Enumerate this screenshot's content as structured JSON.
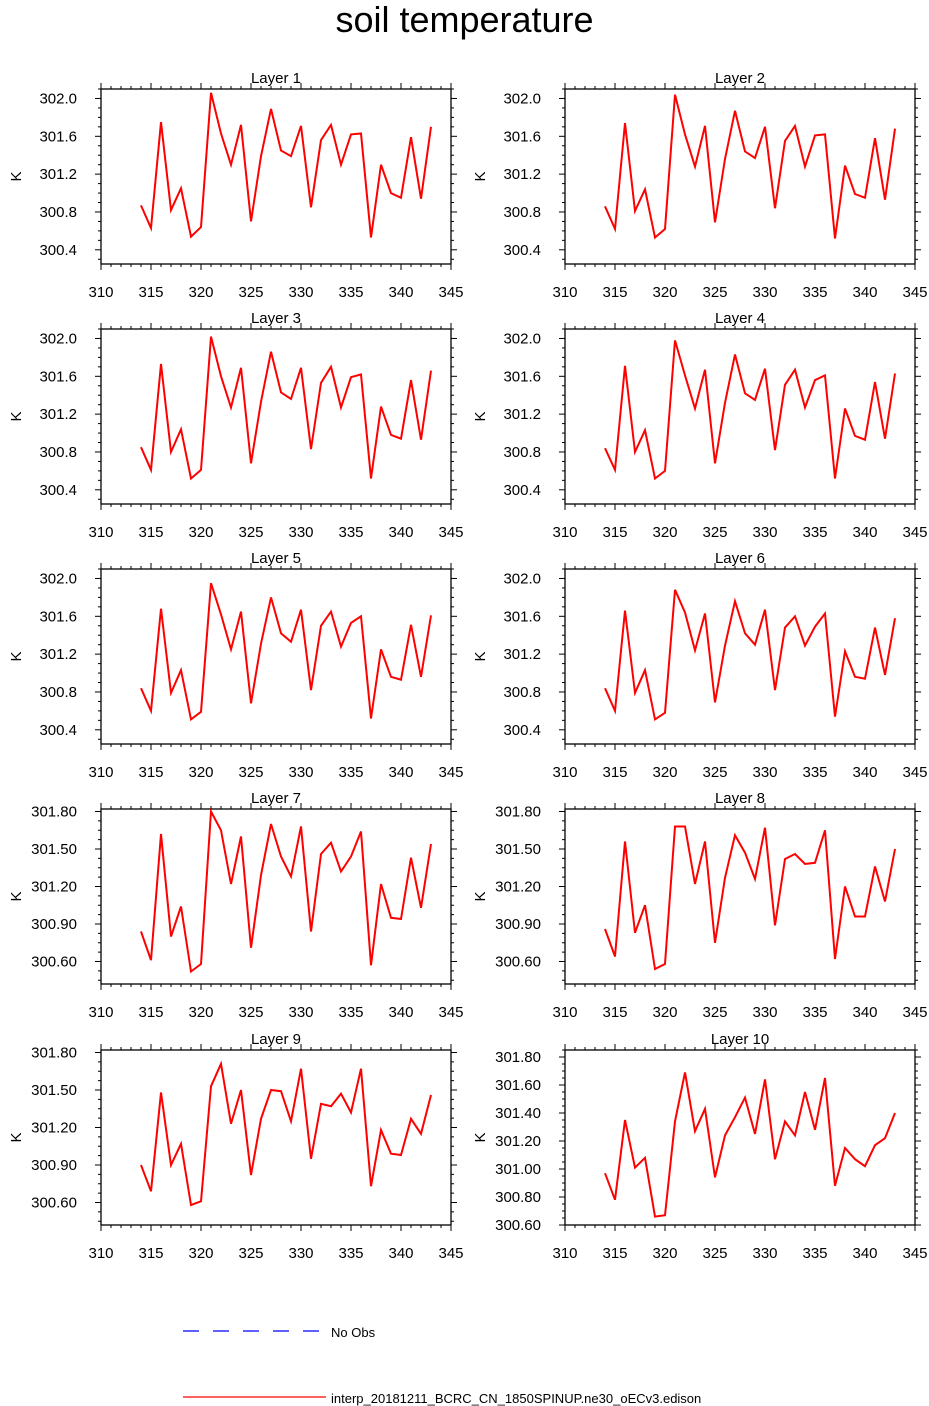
{
  "title": "soil temperature",
  "colors": {
    "model": "#ff0000",
    "obs": "#0000ff",
    "axis": "#000000",
    "background": "#ffffff"
  },
  "legend": {
    "obs_label": "No Obs",
    "model_label": "interp_20181211_BCRC_CN_1850SPINUP.ne30_oECv3.edison",
    "placement": "bottom"
  },
  "chart_data": [
    {
      "type": "line",
      "title": "Layer 1",
      "ylabel": "K",
      "xlim": [
        310,
        345
      ],
      "ylim": [
        300.25,
        302.1
      ],
      "xticks": [
        "310",
        "315",
        "320",
        "325",
        "330",
        "335",
        "340",
        "345"
      ],
      "yticks": [
        "300.4",
        "300.8",
        "301.2",
        "301.6",
        "302.0"
      ],
      "ytick_values": [
        300.4,
        300.8,
        301.2,
        301.6,
        302.0
      ],
      "x": [
        314,
        315,
        316,
        317,
        318,
        319,
        320,
        321,
        322,
        323,
        324,
        325,
        326,
        327,
        328,
        329,
        330,
        331,
        332,
        333,
        334,
        335,
        336,
        337,
        338,
        339,
        340,
        341,
        342,
        343
      ],
      "series": [
        {
          "name": "interp_20181211_BCRC_CN_1850SPINUP.ne30_oECv3.edison",
          "values": [
            300.87,
            300.63,
            301.75,
            300.82,
            301.05,
            300.54,
            300.64,
            302.06,
            301.63,
            301.3,
            301.72,
            300.7,
            301.39,
            301.89,
            301.45,
            301.39,
            301.71,
            300.85,
            301.56,
            301.72,
            301.3,
            301.62,
            301.63,
            300.53,
            301.3,
            301.0,
            300.95,
            301.59,
            300.94,
            301.7
          ]
        }
      ]
    },
    {
      "type": "line",
      "title": "Layer 2",
      "ylabel": "K",
      "xlim": [
        310,
        345
      ],
      "ylim": [
        300.25,
        302.1
      ],
      "xticks": [
        "310",
        "315",
        "320",
        "325",
        "330",
        "335",
        "340",
        "345"
      ],
      "yticks": [
        "300.4",
        "300.8",
        "301.2",
        "301.6",
        "302.0"
      ],
      "ytick_values": [
        300.4,
        300.8,
        301.2,
        301.6,
        302.0
      ],
      "x": [
        314,
        315,
        316,
        317,
        318,
        319,
        320,
        321,
        322,
        323,
        324,
        325,
        326,
        327,
        328,
        329,
        330,
        331,
        332,
        333,
        334,
        335,
        336,
        337,
        338,
        339,
        340,
        341,
        342,
        343
      ],
      "series": [
        {
          "name": "interp_20181211_BCRC_CN_1850SPINUP.ne30_oECv3.edison",
          "values": [
            300.86,
            300.62,
            301.74,
            300.81,
            301.04,
            300.53,
            300.62,
            302.04,
            301.62,
            301.28,
            301.71,
            300.69,
            301.36,
            301.87,
            301.44,
            301.37,
            301.7,
            300.84,
            301.55,
            301.71,
            301.28,
            301.61,
            301.62,
            300.52,
            301.29,
            300.99,
            300.95,
            301.58,
            300.93,
            301.68
          ]
        }
      ]
    },
    {
      "type": "line",
      "title": "Layer 3",
      "ylabel": "K",
      "xlim": [
        310,
        345
      ],
      "ylim": [
        300.25,
        302.1
      ],
      "xticks": [
        "310",
        "315",
        "320",
        "325",
        "330",
        "335",
        "340",
        "345"
      ],
      "yticks": [
        "300.4",
        "300.8",
        "301.2",
        "301.6",
        "302.0"
      ],
      "ytick_values": [
        300.4,
        300.8,
        301.2,
        301.6,
        302.0
      ],
      "x": [
        314,
        315,
        316,
        317,
        318,
        319,
        320,
        321,
        322,
        323,
        324,
        325,
        326,
        327,
        328,
        329,
        330,
        331,
        332,
        333,
        334,
        335,
        336,
        337,
        338,
        339,
        340,
        341,
        342,
        343
      ],
      "series": [
        {
          "name": "interp_20181211_BCRC_CN_1850SPINUP.ne30_oECv3.edison",
          "values": [
            300.85,
            300.61,
            301.73,
            300.8,
            301.04,
            300.52,
            300.61,
            302.02,
            301.6,
            301.27,
            301.69,
            300.68,
            301.33,
            301.86,
            301.43,
            301.36,
            301.69,
            300.83,
            301.53,
            301.7,
            301.27,
            301.59,
            301.62,
            300.52,
            301.28,
            300.98,
            300.94,
            301.56,
            300.93,
            301.66
          ]
        }
      ]
    },
    {
      "type": "line",
      "title": "Layer 4",
      "ylabel": "K",
      "xlim": [
        310,
        345
      ],
      "ylim": [
        300.25,
        302.1
      ],
      "xticks": [
        "310",
        "315",
        "320",
        "325",
        "330",
        "335",
        "340",
        "345"
      ],
      "yticks": [
        "300.4",
        "300.8",
        "301.2",
        "301.6",
        "302.0"
      ],
      "ytick_values": [
        300.4,
        300.8,
        301.2,
        301.6,
        302.0
      ],
      "x": [
        314,
        315,
        316,
        317,
        318,
        319,
        320,
        321,
        322,
        323,
        324,
        325,
        326,
        327,
        328,
        329,
        330,
        331,
        332,
        333,
        334,
        335,
        336,
        337,
        338,
        339,
        340,
        341,
        342,
        343
      ],
      "series": [
        {
          "name": "interp_20181211_BCRC_CN_1850SPINUP.ne30_oECv3.edison",
          "values": [
            300.84,
            300.61,
            301.71,
            300.8,
            301.03,
            300.52,
            300.6,
            301.98,
            301.61,
            301.26,
            301.67,
            300.68,
            301.32,
            301.83,
            301.42,
            301.35,
            301.68,
            300.82,
            301.51,
            301.67,
            301.27,
            301.56,
            301.61,
            300.52,
            301.26,
            300.97,
            300.93,
            301.54,
            300.94,
            301.63
          ]
        }
      ]
    },
    {
      "type": "line",
      "title": "Layer 5",
      "ylabel": "K",
      "xlim": [
        310,
        345
      ],
      "ylim": [
        300.25,
        302.1
      ],
      "xticks": [
        "310",
        "315",
        "320",
        "325",
        "330",
        "335",
        "340",
        "345"
      ],
      "yticks": [
        "300.4",
        "300.8",
        "301.2",
        "301.6",
        "302.0"
      ],
      "ytick_values": [
        300.4,
        300.8,
        301.2,
        301.6,
        302.0
      ],
      "x": [
        314,
        315,
        316,
        317,
        318,
        319,
        320,
        321,
        322,
        323,
        324,
        325,
        326,
        327,
        328,
        329,
        330,
        331,
        332,
        333,
        334,
        335,
        336,
        337,
        338,
        339,
        340,
        341,
        342,
        343
      ],
      "series": [
        {
          "name": "interp_20181211_BCRC_CN_1850SPINUP.ne30_oECv3.edison",
          "values": [
            300.84,
            300.6,
            301.68,
            300.79,
            301.03,
            300.51,
            300.59,
            301.95,
            301.62,
            301.25,
            301.65,
            300.68,
            301.31,
            301.8,
            301.42,
            301.33,
            301.67,
            300.82,
            301.5,
            301.65,
            301.28,
            301.53,
            301.6,
            300.52,
            301.25,
            300.96,
            300.93,
            301.51,
            300.96,
            301.61
          ]
        }
      ]
    },
    {
      "type": "line",
      "title": "Layer 6",
      "ylabel": "K",
      "xlim": [
        310,
        345
      ],
      "ylim": [
        300.25,
        302.1
      ],
      "xticks": [
        "310",
        "315",
        "320",
        "325",
        "330",
        "335",
        "340",
        "345"
      ],
      "yticks": [
        "300.4",
        "300.8",
        "301.2",
        "301.6",
        "302.0"
      ],
      "ytick_values": [
        300.4,
        300.8,
        301.2,
        301.6,
        302.0
      ],
      "x": [
        314,
        315,
        316,
        317,
        318,
        319,
        320,
        321,
        322,
        323,
        324,
        325,
        326,
        327,
        328,
        329,
        330,
        331,
        332,
        333,
        334,
        335,
        336,
        337,
        338,
        339,
        340,
        341,
        342,
        343
      ],
      "series": [
        {
          "name": "interp_20181211_BCRC_CN_1850SPINUP.ne30_oECv3.edison",
          "values": [
            300.84,
            300.6,
            301.66,
            300.79,
            301.03,
            300.51,
            300.58,
            301.88,
            301.64,
            301.24,
            301.63,
            300.69,
            301.29,
            301.76,
            301.42,
            301.3,
            301.67,
            300.82,
            301.48,
            301.6,
            301.29,
            301.49,
            301.63,
            300.54,
            301.23,
            300.96,
            300.94,
            301.48,
            300.98,
            301.58
          ]
        }
      ]
    },
    {
      "type": "line",
      "title": "Layer 7",
      "ylabel": "K",
      "xlim": [
        310,
        345
      ],
      "ylim": [
        300.42,
        301.82
      ],
      "xticks": [
        "310",
        "315",
        "320",
        "325",
        "330",
        "335",
        "340",
        "345"
      ],
      "yticks": [
        "300.60",
        "300.90",
        "301.20",
        "301.50",
        "301.80"
      ],
      "ytick_values": [
        300.6,
        300.9,
        301.2,
        301.5,
        301.8
      ],
      "x": [
        314,
        315,
        316,
        317,
        318,
        319,
        320,
        321,
        322,
        323,
        324,
        325,
        326,
        327,
        328,
        329,
        330,
        331,
        332,
        333,
        334,
        335,
        336,
        337,
        338,
        339,
        340,
        341,
        342,
        343
      ],
      "series": [
        {
          "name": "interp_20181211_BCRC_CN_1850SPINUP.ne30_oECv3.edison",
          "values": [
            300.84,
            300.61,
            301.62,
            300.8,
            301.04,
            300.52,
            300.58,
            301.8,
            301.65,
            301.22,
            301.6,
            300.71,
            301.29,
            301.7,
            301.44,
            301.28,
            301.68,
            300.84,
            301.46,
            301.55,
            301.32,
            301.44,
            301.64,
            300.57,
            301.22,
            300.95,
            300.94,
            301.43,
            301.03,
            301.54
          ]
        }
      ]
    },
    {
      "type": "line",
      "title": "Layer 8",
      "ylabel": "K",
      "xlim": [
        310,
        345
      ],
      "ylim": [
        300.42,
        301.82
      ],
      "xticks": [
        "310",
        "315",
        "320",
        "325",
        "330",
        "335",
        "340",
        "345"
      ],
      "yticks": [
        "300.60",
        "300.90",
        "301.20",
        "301.50",
        "301.80"
      ],
      "ytick_values": [
        300.6,
        300.9,
        301.2,
        301.5,
        301.8
      ],
      "x": [
        314,
        315,
        316,
        317,
        318,
        319,
        320,
        321,
        322,
        323,
        324,
        325,
        326,
        327,
        328,
        329,
        330,
        331,
        332,
        333,
        334,
        335,
        336,
        337,
        338,
        339,
        340,
        341,
        342,
        343
      ],
      "series": [
        {
          "name": "interp_20181211_BCRC_CN_1850SPINUP.ne30_oECv3.edison",
          "values": [
            300.86,
            300.64,
            301.56,
            300.83,
            301.05,
            300.54,
            300.58,
            301.68,
            301.68,
            301.22,
            301.56,
            300.75,
            301.27,
            301.61,
            301.47,
            301.26,
            301.67,
            300.89,
            301.42,
            301.46,
            301.38,
            301.39,
            301.65,
            300.62,
            301.2,
            300.96,
            300.96,
            301.36,
            301.08,
            301.5
          ]
        }
      ]
    },
    {
      "type": "line",
      "title": "Layer 9",
      "ylabel": "K",
      "xlim": [
        310,
        345
      ],
      "ylim": [
        300.42,
        301.82
      ],
      "xticks": [
        "310",
        "315",
        "320",
        "325",
        "330",
        "335",
        "340",
        "345"
      ],
      "yticks": [
        "300.60",
        "300.90",
        "301.20",
        "301.50",
        "301.80"
      ],
      "ytick_values": [
        300.6,
        300.9,
        301.2,
        301.5,
        301.8
      ],
      "x": [
        314,
        315,
        316,
        317,
        318,
        319,
        320,
        321,
        322,
        323,
        324,
        325,
        326,
        327,
        328,
        329,
        330,
        331,
        332,
        333,
        334,
        335,
        336,
        337,
        338,
        339,
        340,
        341,
        342,
        343
      ],
      "series": [
        {
          "name": "interp_20181211_BCRC_CN_1850SPINUP.ne30_oECv3.edison",
          "values": [
            300.9,
            300.69,
            301.48,
            300.9,
            301.07,
            300.58,
            300.61,
            301.53,
            301.71,
            301.23,
            301.5,
            300.82,
            301.27,
            301.5,
            301.49,
            301.25,
            301.67,
            300.95,
            301.39,
            301.37,
            301.47,
            301.32,
            301.67,
            300.73,
            301.18,
            300.99,
            300.98,
            301.27,
            301.15,
            301.46
          ]
        }
      ]
    },
    {
      "type": "line",
      "title": "Layer 10",
      "ylabel": "K",
      "xlim": [
        310,
        345
      ],
      "ylim": [
        300.6,
        301.85
      ],
      "xticks": [
        "310",
        "315",
        "320",
        "325",
        "330",
        "335",
        "340",
        "345"
      ],
      "yticks": [
        "300.60",
        "300.80",
        "301.00",
        "301.20",
        "301.40",
        "301.60",
        "301.80"
      ],
      "ytick_values": [
        300.6,
        300.8,
        301.0,
        301.2,
        301.4,
        301.6,
        301.8
      ],
      "x": [
        314,
        315,
        316,
        317,
        318,
        319,
        320,
        321,
        322,
        323,
        324,
        325,
        326,
        327,
        328,
        329,
        330,
        331,
        332,
        333,
        334,
        335,
        336,
        337,
        338,
        339,
        340,
        341,
        342,
        343
      ],
      "series": [
        {
          "name": "interp_20181211_BCRC_CN_1850SPINUP.ne30_oECv3.edison",
          "values": [
            300.97,
            300.78,
            301.35,
            301.01,
            301.08,
            300.66,
            300.67,
            301.34,
            301.69,
            301.27,
            301.43,
            300.94,
            301.24,
            301.37,
            301.51,
            301.25,
            301.64,
            301.07,
            301.34,
            301.24,
            301.55,
            301.28,
            301.65,
            300.88,
            301.15,
            301.07,
            301.02,
            301.17,
            301.22,
            301.4
          ]
        }
      ]
    }
  ]
}
